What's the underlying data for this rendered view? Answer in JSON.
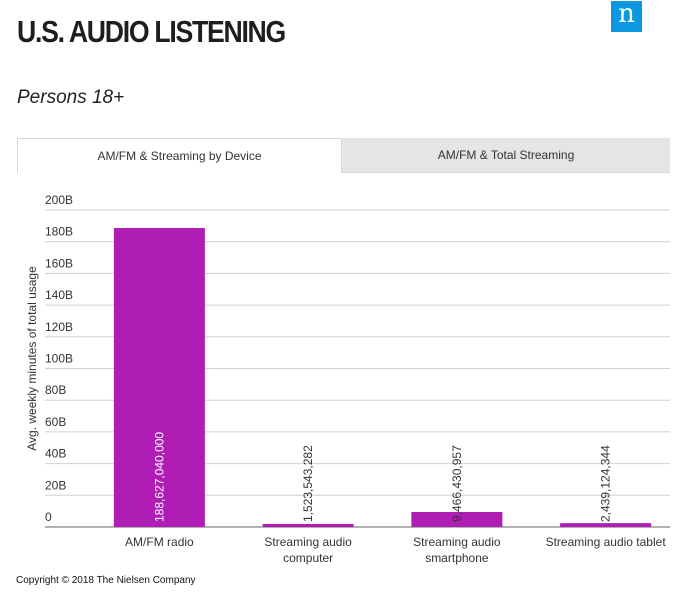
{
  "header": {
    "title": "U.S. AUDIO LISTENING",
    "logo_letter": "n",
    "subtitle": "Persons 18+"
  },
  "tabs": [
    {
      "label": "AM/FM & Streaming by Device",
      "active": true
    },
    {
      "label": "AM/FM & Total Streaming",
      "active": false
    }
  ],
  "chart_data": {
    "type": "bar",
    "title": "",
    "xlabel": "",
    "ylabel": "Avg. weekly minutes of total usage",
    "categories": [
      [
        "AM/FM radio"
      ],
      [
        "Streaming audio",
        "computer"
      ],
      [
        "Streaming audio",
        "smartphone"
      ],
      [
        "Streaming audio tablet"
      ]
    ],
    "values": [
      188627040000,
      1523543282,
      9466430957,
      2439124344
    ],
    "data_labels": [
      "188,627,040,000",
      "1,523,543,282",
      "9,466,430,957",
      "2,439,124,344"
    ],
    "ylim": [
      0,
      200000000000
    ],
    "yticks": [
      0,
      20000000000,
      40000000000,
      60000000000,
      80000000000,
      100000000000,
      120000000000,
      140000000000,
      160000000000,
      180000000000,
      200000000000
    ],
    "ytick_labels": [
      "0",
      "20B",
      "40B",
      "60B",
      "80B",
      "100B",
      "120B",
      "140B",
      "160B",
      "180B",
      "200B"
    ],
    "grid": true,
    "bar_color": "#b01db5",
    "grid_color": "#d0d0d0"
  },
  "footer": {
    "copyright": "Copyright © 2018 The Nielsen Company"
  }
}
